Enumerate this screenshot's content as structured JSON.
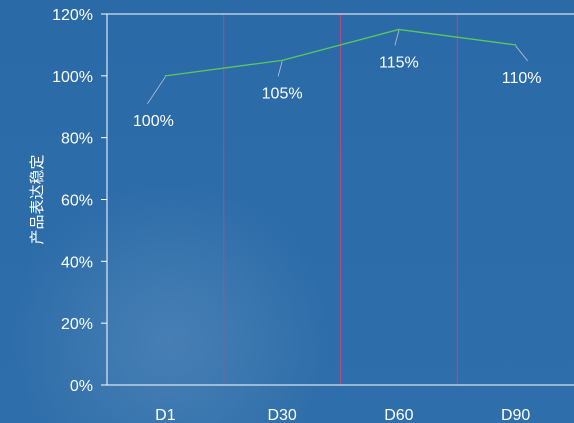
{
  "chart_data": {
    "type": "line",
    "categories": [
      "D1",
      "D30",
      "D60",
      "D90"
    ],
    "series": [
      {
        "values": [
          100,
          105,
          115,
          110
        ]
      }
    ],
    "data_labels": [
      "100%",
      "105%",
      "115%",
      "110%"
    ],
    "y_ticks": [
      "0%",
      "20%",
      "40%",
      "60%",
      "80%",
      "100%",
      "120%"
    ],
    "ylim": [
      0,
      120
    ],
    "ylabel": "产品表达稳定",
    "xlabel": "",
    "title": "",
    "grid": false,
    "line_color": "#5cc85c",
    "separator_color": "#b04a8a",
    "axis_color": "#ffffff",
    "label_color": "#ffffff"
  }
}
